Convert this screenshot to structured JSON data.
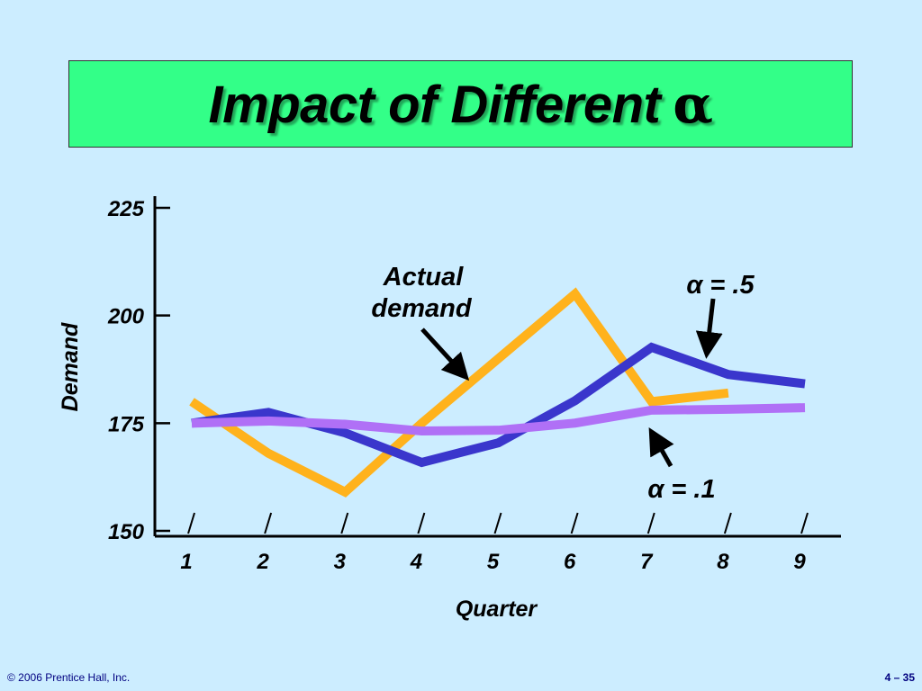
{
  "slide": {
    "title": "Impact of Different",
    "title_symbol": "α",
    "copyright": "© 2006 Prentice Hall, Inc.",
    "page_number": "4 – 35"
  },
  "colors": {
    "background": "#ccedff",
    "title_box": "#33ff88",
    "actual": "#ffb21c",
    "alpha_05": "#3a36cc",
    "alpha_01": "#b070f6"
  },
  "chart_data": {
    "type": "line",
    "title": "",
    "xlabel": "Quarter",
    "ylabel": "Demand",
    "categories": [
      1,
      2,
      3,
      4,
      5,
      6,
      7,
      8,
      9
    ],
    "ylim": [
      150,
      225
    ],
    "yticks": [
      150,
      175,
      200,
      225
    ],
    "grid": false,
    "series": [
      {
        "name": "Actual demand",
        "x": [
          1,
          2,
          3,
          4,
          5,
          6,
          7,
          8
        ],
        "values": [
          180,
          168,
          159,
          175,
          190,
          205,
          180,
          182
        ]
      },
      {
        "name": "α = .5",
        "x": [
          1,
          2,
          3,
          4,
          5,
          6,
          7,
          8,
          9
        ],
        "values": [
          175,
          177.5,
          172.75,
          165.88,
          170.44,
          180.22,
          192.61,
          186.3,
          184.15
        ]
      },
      {
        "name": "α = .1",
        "x": [
          1,
          2,
          3,
          4,
          5,
          6,
          7,
          8,
          9
        ],
        "values": [
          175,
          175.5,
          174.75,
          173.18,
          173.36,
          175.02,
          178.02,
          178.22,
          178.6
        ]
      }
    ],
    "annotations": [
      {
        "target": "Actual demand",
        "text_line1": "Actual",
        "text_line2": "demand"
      },
      {
        "target": "α = .5",
        "text": "α = .5"
      },
      {
        "target": "α = .1",
        "text": "α = .1"
      }
    ]
  }
}
